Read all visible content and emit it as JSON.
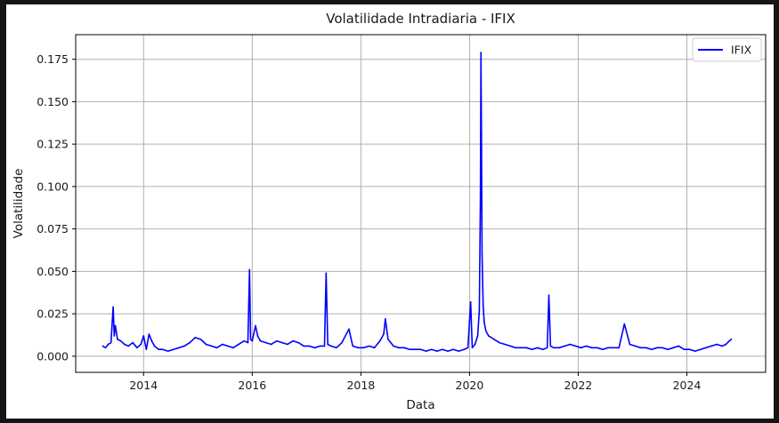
{
  "chart_data": {
    "type": "line",
    "title": "Volatilidade Intradiaria - IFIX",
    "xlabel": "Data",
    "ylabel": "Volatilidade",
    "xlim": [
      2012.75,
      2025.45
    ],
    "ylim": [
      -0.0095,
      0.1895
    ],
    "x_ticks": [
      2014,
      2016,
      2018,
      2020,
      2022,
      2024
    ],
    "x_tick_labels": [
      "2014",
      "2016",
      "2018",
      "2020",
      "2022",
      "2024"
    ],
    "y_ticks": [
      0.0,
      0.025,
      0.05,
      0.075,
      0.1,
      0.125,
      0.15,
      0.175
    ],
    "y_tick_labels": [
      "0.000",
      "0.025",
      "0.050",
      "0.075",
      "0.100",
      "0.125",
      "0.150",
      "0.175"
    ],
    "grid": true,
    "legend_position": "top-right",
    "colors": {
      "IFIX": "#0000ff"
    },
    "series": [
      {
        "name": "IFIX",
        "x": [
          2013.25,
          2013.3,
          2013.35,
          2013.4,
          2013.44,
          2013.46,
          2013.48,
          2013.52,
          2013.58,
          2013.65,
          2013.72,
          2013.8,
          2013.88,
          2013.95,
          2014.0,
          2014.05,
          2014.1,
          2014.15,
          2014.2,
          2014.28,
          2014.35,
          2014.45,
          2014.55,
          2014.65,
          2014.75,
          2014.85,
          2014.95,
          2015.05,
          2015.15,
          2015.25,
          2015.35,
          2015.45,
          2015.55,
          2015.65,
          2015.75,
          2015.85,
          2015.92,
          2015.95,
          2015.97,
          2016.0,
          2016.06,
          2016.1,
          2016.15,
          2016.25,
          2016.35,
          2016.45,
          2016.55,
          2016.65,
          2016.75,
          2016.85,
          2016.95,
          2017.05,
          2017.15,
          2017.25,
          2017.33,
          2017.36,
          2017.39,
          2017.45,
          2017.55,
          2017.65,
          2017.78,
          2017.85,
          2017.95,
          2018.05,
          2018.15,
          2018.25,
          2018.35,
          2018.42,
          2018.45,
          2018.5,
          2018.6,
          2018.7,
          2018.8,
          2018.9,
          2019.0,
          2019.1,
          2019.2,
          2019.3,
          2019.4,
          2019.5,
          2019.6,
          2019.7,
          2019.8,
          2019.9,
          2019.97,
          2020.02,
          2020.05,
          2020.1,
          2020.15,
          2020.18,
          2020.2,
          2020.21,
          2020.22,
          2020.23,
          2020.25,
          2020.27,
          2020.3,
          2020.35,
          2020.45,
          2020.55,
          2020.65,
          2020.75,
          2020.85,
          2020.95,
          2021.05,
          2021.15,
          2021.25,
          2021.35,
          2021.43,
          2021.46,
          2021.49,
          2021.55,
          2021.65,
          2021.75,
          2021.85,
          2021.95,
          2022.05,
          2022.15,
          2022.25,
          2022.35,
          2022.45,
          2022.55,
          2022.65,
          2022.75,
          2022.85,
          2022.95,
          2023.05,
          2023.15,
          2023.25,
          2023.35,
          2023.45,
          2023.55,
          2023.65,
          2023.75,
          2023.85,
          2023.95,
          2024.05,
          2024.15,
          2024.25,
          2024.35,
          2024.45,
          2024.55,
          2024.65,
          2024.72,
          2024.78,
          2024.82
        ],
        "values": [
          0.006,
          0.005,
          0.007,
          0.008,
          0.029,
          0.012,
          0.018,
          0.01,
          0.009,
          0.007,
          0.006,
          0.008,
          0.005,
          0.007,
          0.012,
          0.004,
          0.013,
          0.009,
          0.006,
          0.004,
          0.004,
          0.003,
          0.004,
          0.005,
          0.006,
          0.008,
          0.011,
          0.01,
          0.007,
          0.006,
          0.005,
          0.007,
          0.006,
          0.005,
          0.007,
          0.009,
          0.008,
          0.051,
          0.01,
          0.009,
          0.018,
          0.012,
          0.009,
          0.008,
          0.007,
          0.009,
          0.008,
          0.007,
          0.009,
          0.008,
          0.006,
          0.006,
          0.005,
          0.006,
          0.006,
          0.049,
          0.007,
          0.006,
          0.005,
          0.008,
          0.016,
          0.006,
          0.005,
          0.005,
          0.006,
          0.005,
          0.009,
          0.013,
          0.022,
          0.01,
          0.006,
          0.005,
          0.005,
          0.004,
          0.004,
          0.004,
          0.003,
          0.004,
          0.003,
          0.004,
          0.003,
          0.004,
          0.003,
          0.004,
          0.005,
          0.032,
          0.005,
          0.007,
          0.012,
          0.027,
          0.094,
          0.179,
          0.125,
          0.06,
          0.03,
          0.02,
          0.015,
          0.012,
          0.01,
          0.008,
          0.007,
          0.006,
          0.005,
          0.005,
          0.005,
          0.004,
          0.005,
          0.004,
          0.005,
          0.036,
          0.006,
          0.005,
          0.005,
          0.006,
          0.007,
          0.006,
          0.005,
          0.006,
          0.005,
          0.005,
          0.004,
          0.005,
          0.005,
          0.005,
          0.019,
          0.007,
          0.006,
          0.005,
          0.005,
          0.004,
          0.005,
          0.005,
          0.004,
          0.005,
          0.006,
          0.004,
          0.004,
          0.003,
          0.004,
          0.005,
          0.006,
          0.007,
          0.006,
          0.007,
          0.009,
          0.01
        ]
      }
    ]
  }
}
